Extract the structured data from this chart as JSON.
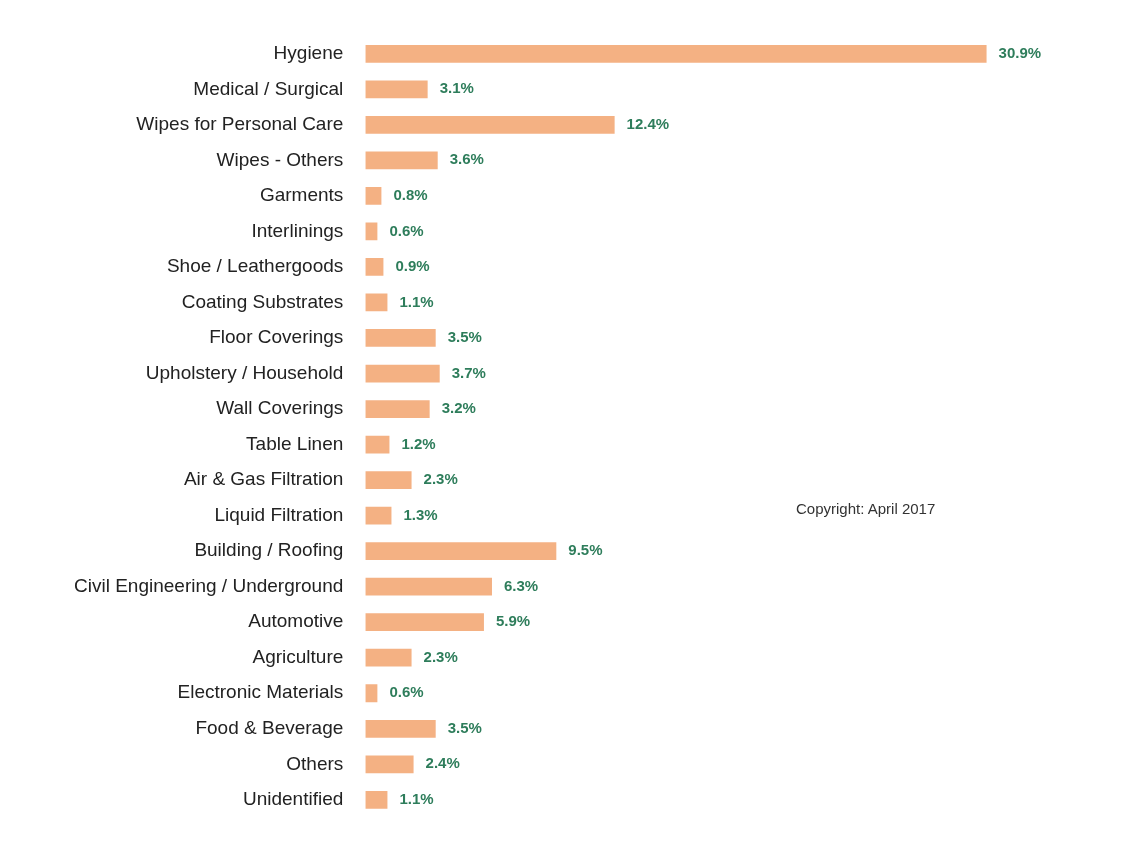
{
  "chart_data": {
    "type": "bar",
    "orientation": "horizontal",
    "categories": [
      "Hygiene",
      "Medical / Surgical",
      "Wipes for Personal Care",
      "Wipes - Others",
      "Garments",
      "Interlinings",
      "Shoe / Leathergoods",
      "Coating Substrates",
      "Floor Coverings",
      "Upholstery / Household",
      "Wall Coverings",
      "Table Linen",
      "Air & Gas Filtration",
      "Liquid Filtration",
      "Building / Roofing",
      "Civil Engineering / Underground",
      "Automotive",
      "Agriculture",
      "Electronic Materials",
      "Food & Beverage",
      "Others",
      "Unidentified"
    ],
    "values": [
      30.9,
      3.1,
      12.4,
      3.6,
      0.8,
      0.6,
      0.9,
      1.1,
      3.5,
      3.7,
      3.2,
      1.2,
      2.3,
      1.3,
      9.5,
      6.3,
      5.9,
      2.3,
      0.6,
      3.5,
      2.4,
      1.1
    ],
    "value_labels": [
      "30.9%",
      "3.1%",
      "12.4%",
      "3.6%",
      "0.8%",
      "0.6%",
      "0.9%",
      "1.1%",
      "3.5%",
      "3.7%",
      "3.2%",
      "1.2%",
      "2.3%",
      "1.3%",
      "9.5%",
      "6.3%",
      "5.9%",
      "2.3%",
      "0.6%",
      "3.5%",
      "2.4%",
      "1.1%"
    ],
    "color": "#f4b183",
    "annotations": [
      "Copyright: April 2017"
    ],
    "legend": false
  }
}
